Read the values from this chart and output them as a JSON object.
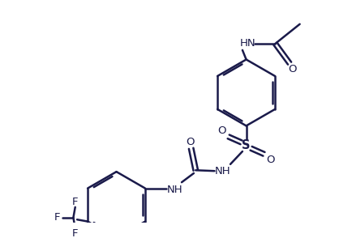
{
  "bg_color": "#ffffff",
  "line_color": "#1a1a4a",
  "line_width": 1.8,
  "font_size": 9.5,
  "fig_width": 4.35,
  "fig_height": 2.94,
  "dpi": 100,
  "xlim": [
    0,
    8.7
  ],
  "ylim": [
    0,
    5.88
  ]
}
